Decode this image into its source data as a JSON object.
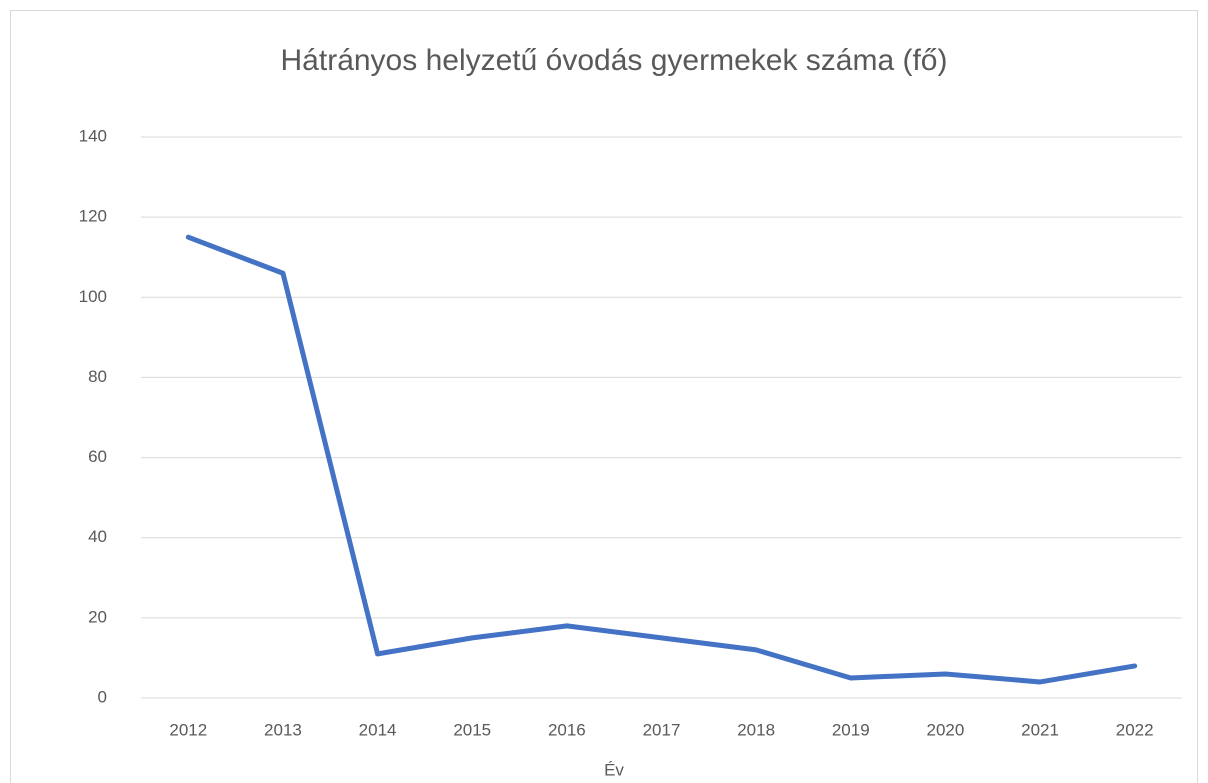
{
  "chart_data": {
    "type": "line",
    "title": "Hátrányos helyzetű óvodás gyermekek száma (fő)",
    "x_label": "Év",
    "categories": [
      "2012",
      "2013",
      "2014",
      "2015",
      "2016",
      "2017",
      "2018",
      "2019",
      "2020",
      "2021",
      "2022"
    ],
    "values": [
      115,
      106,
      11,
      15,
      18,
      15,
      12,
      5,
      6,
      4,
      8
    ],
    "color": "#4472c4",
    "ylim": [
      0,
      140
    ],
    "yticks": [
      0,
      20,
      40,
      60,
      80,
      100,
      120,
      140
    ],
    "grid": true
  }
}
